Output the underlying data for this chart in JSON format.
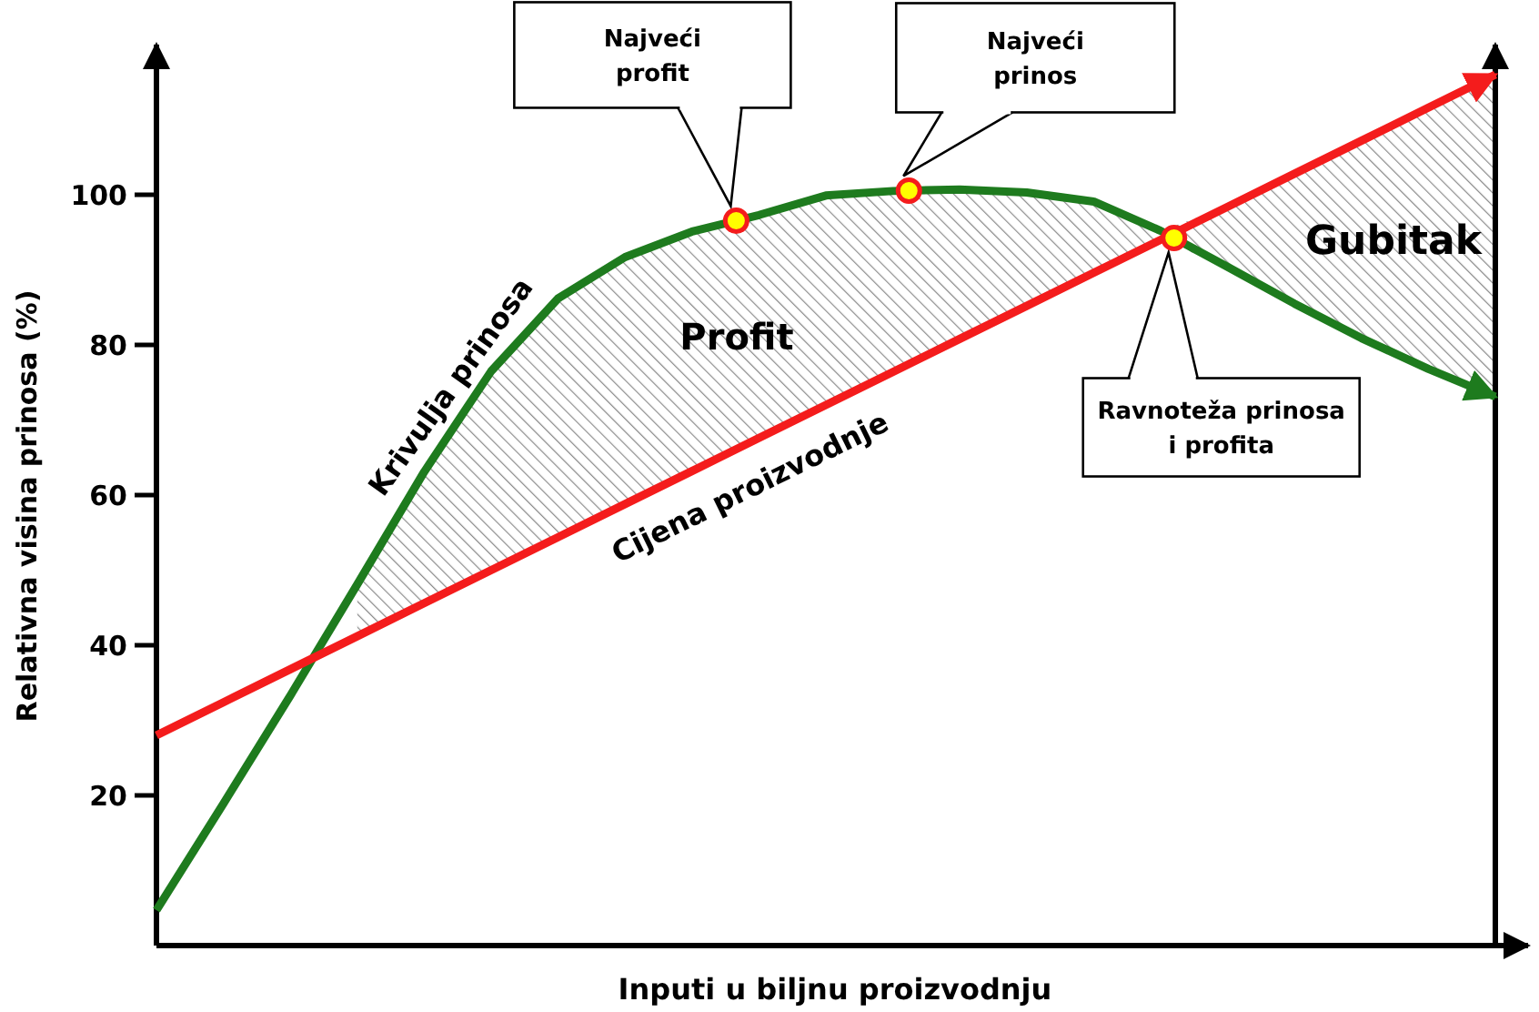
{
  "chart_data": {
    "type": "line",
    "xlabel": "Inputi u biljnu proizvodnju",
    "ylabel": "Relativna visina prinosa (%)",
    "categories": [
      null,
      null,
      null,
      null,
      null,
      null,
      null,
      null,
      null,
      null,
      null,
      null,
      null,
      null,
      null,
      null,
      null,
      null,
      null,
      null,
      null
    ],
    "ylim": [
      0,
      120
    ],
    "yticks": [
      20,
      40,
      60,
      80,
      100
    ],
    "grid": false,
    "legend": false,
    "marker": "none",
    "line_style": "solid",
    "series": [
      {
        "name": "Krivulja prinosa",
        "color": "#1e7b1e",
        "values": [
          4.7,
          18.9,
          33.3,
          48.1,
          63.1,
          76.5,
          86.2,
          91.7,
          95.1,
          97.3,
          99.9,
          100.5,
          100.7,
          100.3,
          99.1,
          95.2,
          90.4,
          85.5,
          80.9,
          76.8,
          73.1
        ],
        "lower": [
          null,
          null,
          null,
          41.2,
          45.6,
          50,
          54.4,
          58.8,
          63.2,
          67.6,
          72,
          76.4,
          80.8,
          85.2,
          89.6,
          94,
          90.4,
          85.5,
          80.9,
          76.8,
          73.1
        ],
        "upper": [
          null,
          null,
          null,
          48.1,
          63.1,
          76.5,
          86.2,
          91.7,
          95.1,
          97.3,
          99.9,
          100.5,
          100.7,
          100.3,
          99.1,
          95.2,
          98.4,
          102.8,
          107.2,
          111.6,
          116
        ]
      },
      {
        "name": "Cijena proizvodnje",
        "color": "#f41c1c",
        "values": [
          28,
          32.4,
          36.8,
          41.2,
          45.6,
          50,
          54.4,
          58.8,
          63.2,
          67.6,
          72,
          76.4,
          80.8,
          85.2,
          89.6,
          94,
          98.4,
          102.8,
          107.2,
          111.6,
          116
        ]
      }
    ],
    "annotations": [
      "Najveći profit",
      "Najveći prinos",
      "Ravnoteža prinosa i profita",
      "Profit",
      "Gubitak"
    ]
  }
}
